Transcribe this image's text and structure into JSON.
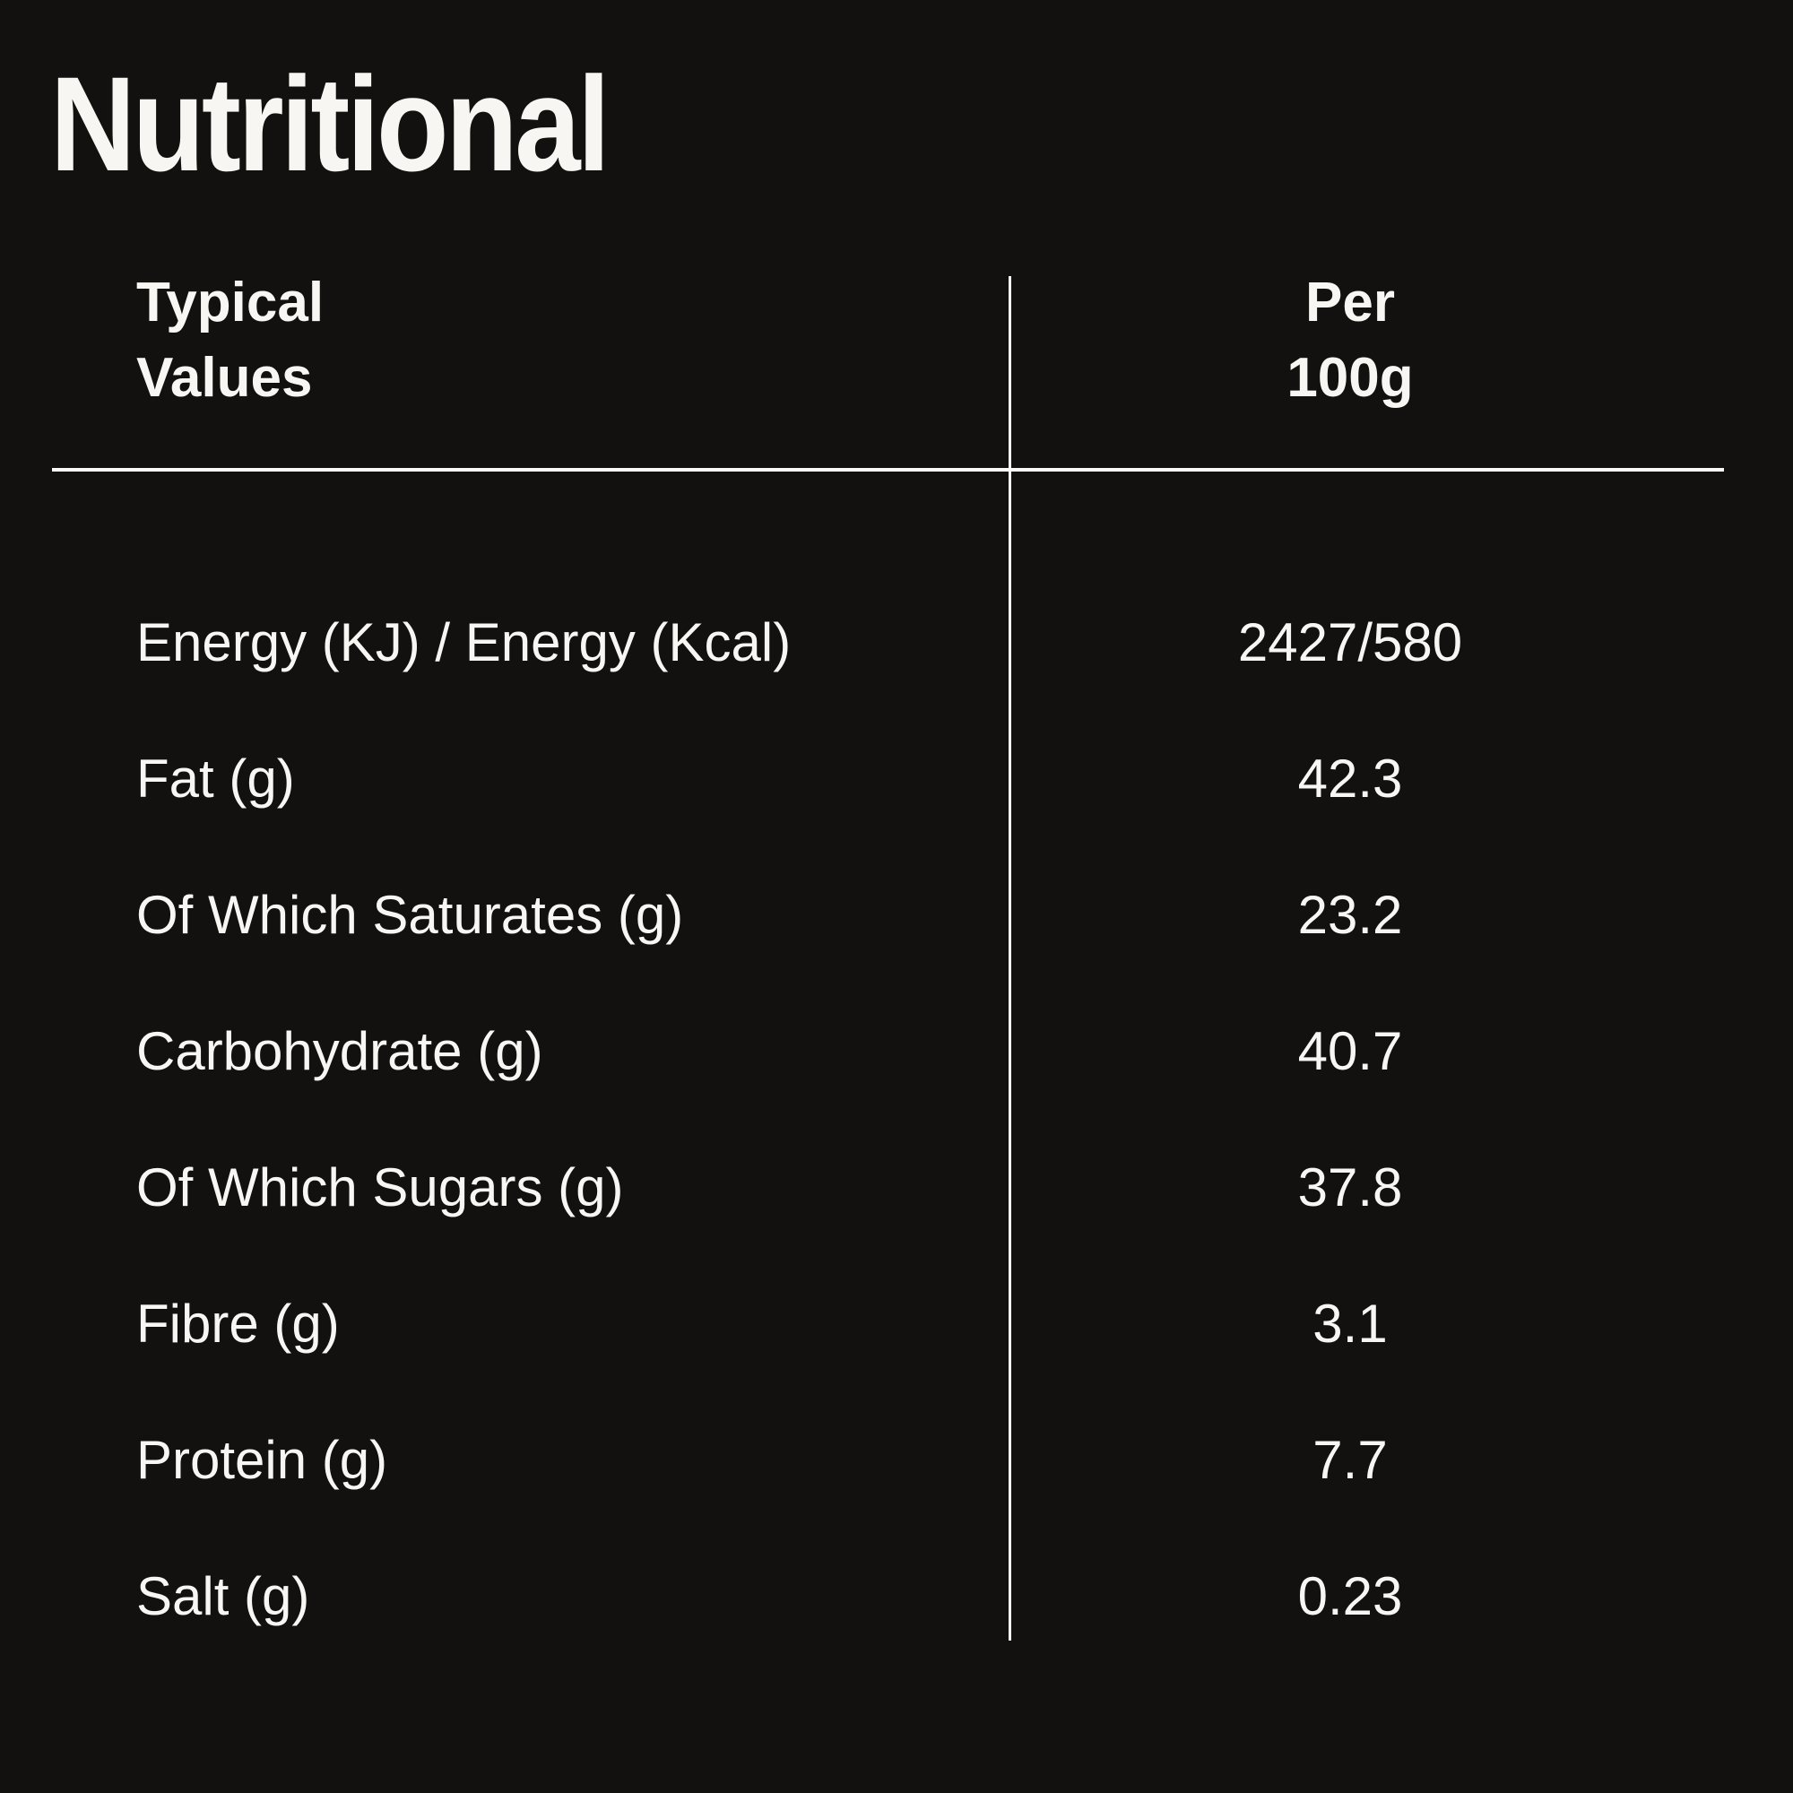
{
  "title": "Nutritional",
  "table": {
    "header": {
      "col1_line1": "Typical",
      "col1_line2": "Values",
      "col2_line1": "Per",
      "col2_line2": "100g"
    },
    "rows": [
      {
        "label": "Energy (KJ) / Energy (Kcal)",
        "value": "2427/580"
      },
      {
        "label": "Fat (g)",
        "value": "42.3"
      },
      {
        "label": "Of Which Saturates (g)",
        "value": "23.2"
      },
      {
        "label": "Carbohydrate (g)",
        "value": "40.7"
      },
      {
        "label": "Of Which Sugars (g)",
        "value": "37.8"
      },
      {
        "label": "Fibre (g)",
        "value": "3.1"
      },
      {
        "label": "Protein (g)",
        "value": "7.7"
      },
      {
        "label": "Salt (g)",
        "value": "0.23"
      }
    ]
  },
  "colors": {
    "background": "#131110",
    "text": "#f8f6f3",
    "rule": "#fbfaf8"
  }
}
